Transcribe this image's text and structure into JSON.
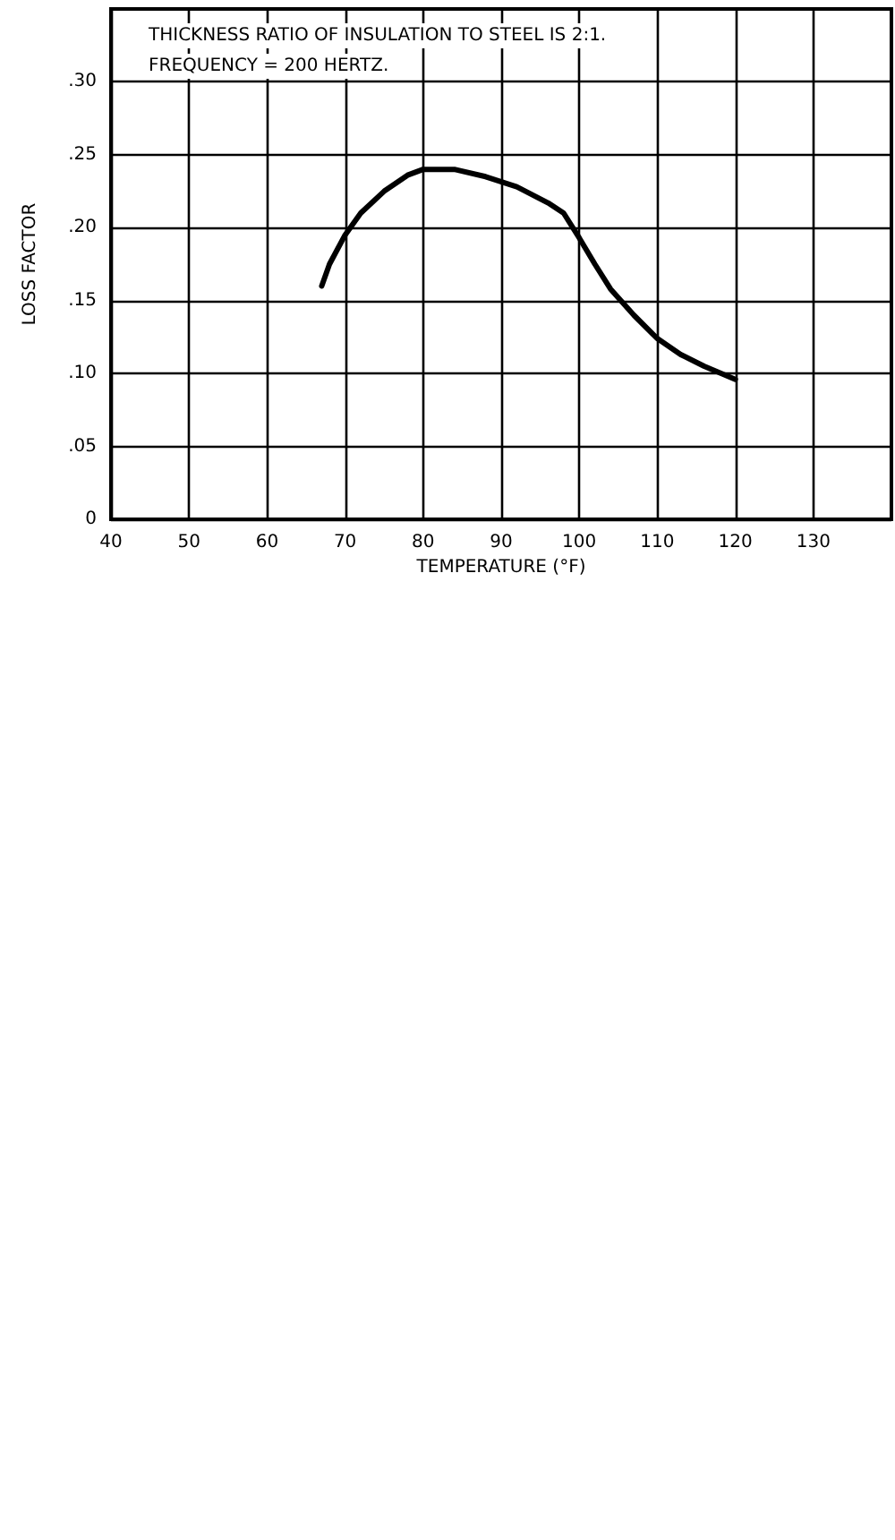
{
  "chart_data": {
    "type": "line",
    "xlabel": "TEMPERATURE (°F)",
    "ylabel": "LOSS FACTOR",
    "annotations": [
      "THICKNESS RATIO OF INSULATION TO STEEL IS 2:1.",
      "FREQUENCY = 200 HERTZ."
    ],
    "series": [
      {
        "color": "#000000",
        "x": [
          67,
          68,
          70,
          72,
          75,
          78,
          80,
          84,
          88,
          92,
          96,
          98,
          100,
          102,
          104,
          107,
          110,
          113,
          116,
          120
        ],
        "values": [
          0.16,
          0.175,
          0.195,
          0.21,
          0.225,
          0.236,
          0.24,
          0.24,
          0.235,
          0.228,
          0.217,
          0.21,
          0.193,
          0.175,
          0.158,
          0.14,
          0.124,
          0.113,
          0.105,
          0.096
        ]
      }
    ],
    "xlim": [
      40,
      140
    ],
    "xticks": [
      40,
      50,
      60,
      70,
      80,
      90,
      100,
      110,
      120,
      130
    ],
    "ylim": [
      0,
      0.35
    ],
    "yticks": [
      0,
      {
        "value": 0.05,
        "label": ".05"
      },
      {
        "value": 0.1,
        "label": ".10"
      },
      {
        "value": 0.15,
        "label": ".15"
      },
      {
        "value": 0.2,
        "label": ".20"
      },
      {
        "value": 0.25,
        "label": ".25"
      },
      {
        "value": 0.3,
        "label": ".30"
      }
    ],
    "grid": true,
    "marker": "none",
    "line_style": "solid"
  }
}
